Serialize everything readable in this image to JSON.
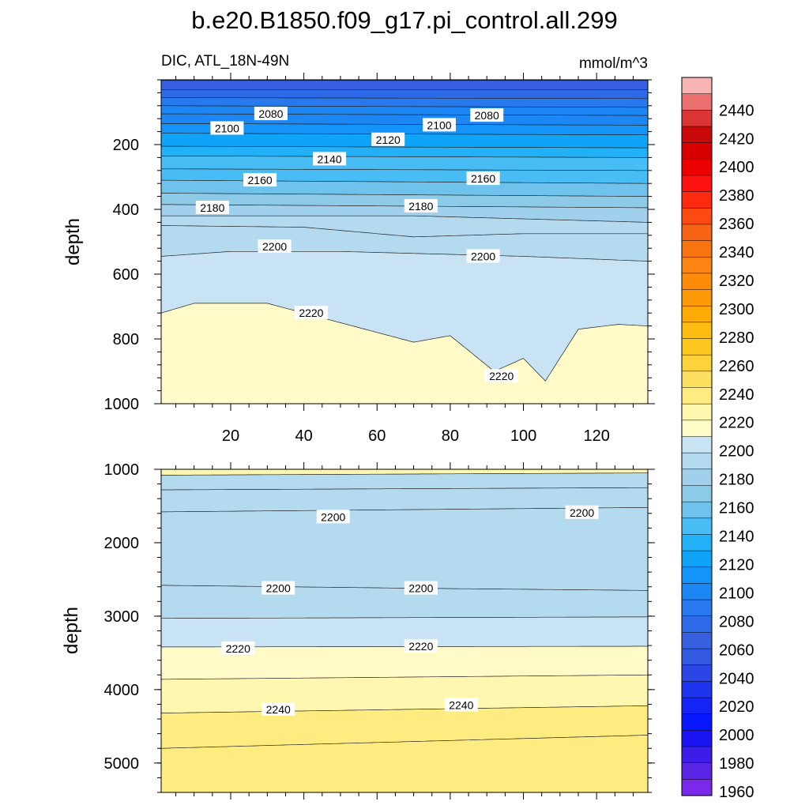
{
  "title": "b.e20.B1850.f09_g17.pi_control.all.299",
  "chart_data": [
    {
      "type": "contour",
      "panel": "upper",
      "subtitle_left": "DIC, ATL_18N-49N",
      "subtitle_right": "mmol/m^3",
      "ylabel": "depth",
      "xlim": [
        1,
        134
      ],
      "ylim": [
        1000,
        0
      ],
      "xticks": [
        20,
        40,
        60,
        80,
        100,
        120
      ],
      "yticks": [
        200,
        400,
        600,
        800,
        1000
      ],
      "contour_labels": [
        {
          "value": "2080",
          "x": 31,
          "y": 105
        },
        {
          "value": "2080",
          "x": 90,
          "y": 110
        },
        {
          "value": "2100",
          "x": 19,
          "y": 150
        },
        {
          "value": "2100",
          "x": 77,
          "y": 140
        },
        {
          "value": "2120",
          "x": 63,
          "y": 185
        },
        {
          "value": "2140",
          "x": 47,
          "y": 245
        },
        {
          "value": "2160",
          "x": 28,
          "y": 310
        },
        {
          "value": "2160",
          "x": 89,
          "y": 305
        },
        {
          "value": "2180",
          "x": 15,
          "y": 395
        },
        {
          "value": "2180",
          "x": 72,
          "y": 390
        },
        {
          "value": "2200",
          "x": 32,
          "y": 515
        },
        {
          "value": "2200",
          "x": 89,
          "y": 545
        },
        {
          "value": "2220",
          "x": 42,
          "y": 720
        },
        {
          "value": "2220",
          "x": 94,
          "y": 915
        }
      ]
    },
    {
      "type": "contour",
      "panel": "lower",
      "ylabel": "depth",
      "xlim": [
        1,
        134
      ],
      "ylim": [
        5400,
        1000
      ],
      "yticks": [
        1000,
        2000,
        3000,
        4000,
        5000
      ],
      "contour_labels": [
        {
          "value": "2200",
          "x": 48,
          "y": 1650
        },
        {
          "value": "2200",
          "x": 116,
          "y": 1590
        },
        {
          "value": "2200",
          "x": 33,
          "y": 2620
        },
        {
          "value": "2200",
          "x": 72,
          "y": 2620
        },
        {
          "value": "2220",
          "x": 22,
          "y": 3440
        },
        {
          "value": "2220",
          "x": 72,
          "y": 3410
        },
        {
          "value": "2240",
          "x": 33,
          "y": 4270
        },
        {
          "value": "2240",
          "x": 83,
          "y": 4210
        }
      ]
    }
  ],
  "colorbar": {
    "labels": [
      "2440",
      "2420",
      "2400",
      "2380",
      "2360",
      "2340",
      "2320",
      "2300",
      "2280",
      "2260",
      "2240",
      "2220",
      "2200",
      "2180",
      "2160",
      "2140",
      "2120",
      "2100",
      "2080",
      "2060",
      "2040",
      "2020",
      "2000",
      "1980",
      "1960"
    ],
    "colors": [
      "#f8b4b4",
      "#ec7070",
      "#dc3535",
      "#c80a0a",
      "#d80000",
      "#ec0000",
      "#fc1010",
      "#fe2a10",
      "#fe4a10",
      "#f86416",
      "#f87410",
      "#fc8412",
      "#fe8c08",
      "#fe9a08",
      "#feaa08",
      "#febb10",
      "#fec820",
      "#fed23a",
      "#fee060",
      "#feec80",
      "#fff7b0",
      "#fffbc8",
      "#c8e4f4",
      "#b4daf0",
      "#a0d0ec",
      "#8ccae8",
      "#6ec2ec",
      "#48bcf4",
      "#22b0f6",
      "#10a4f8",
      "#1494f8",
      "#1c86f4",
      "#2878ee",
      "#2e6ae8",
      "#3660e0",
      "#3458e0",
      "#2c46e6",
      "#1e34ee",
      "#1424f6",
      "#0818fe",
      "#1a14f4",
      "#3c1ce8",
      "#5c24e4",
      "#7a28ea"
    ]
  }
}
